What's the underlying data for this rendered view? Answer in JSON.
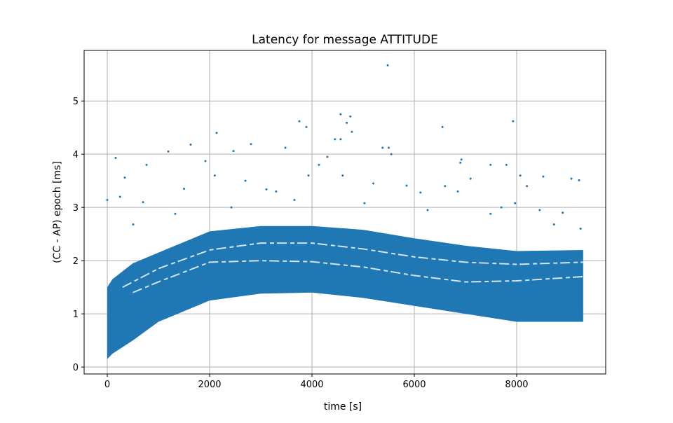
{
  "chart_data": {
    "type": "scatter",
    "title": "Latency for message ATTITUDE",
    "xlabel": "time [s]",
    "ylabel": "(CC - AP) epoch [ms]",
    "xlim": [
      -452,
      9740
    ],
    "ylim": [
      -0.13,
      5.95
    ],
    "xticks": [
      0,
      2000,
      4000,
      6000,
      8000
    ],
    "yticks": [
      0,
      1,
      2,
      3,
      4,
      5
    ],
    "grid": true,
    "color": "#1f77b4",
    "dense_band": {
      "x": [
        0,
        100,
        500,
        1000,
        2000,
        3000,
        4000,
        5000,
        6000,
        7000,
        8000,
        9300
      ],
      "lower": [
        0.15,
        0.25,
        0.5,
        0.85,
        1.25,
        1.38,
        1.4,
        1.3,
        1.15,
        1.0,
        0.85,
        0.85
      ],
      "upper": [
        1.5,
        1.65,
        1.95,
        2.15,
        2.55,
        2.65,
        2.65,
        2.58,
        2.42,
        2.28,
        2.18,
        2.2
      ]
    },
    "band_gaps": [
      {
        "x": [
          300,
          1000,
          2000,
          3000,
          4000,
          5000,
          6000,
          7000,
          8000,
          9300
        ],
        "y": [
          1.5,
          1.85,
          2.2,
          2.33,
          2.33,
          2.22,
          2.07,
          1.97,
          1.93,
          1.97
        ]
      },
      {
        "x": [
          500,
          1000,
          2000,
          3000,
          4000,
          5000,
          6000,
          7000,
          8000,
          9300
        ],
        "y": [
          1.4,
          1.6,
          1.97,
          2.0,
          1.98,
          1.88,
          1.72,
          1.6,
          1.62,
          1.7
        ]
      }
    ],
    "outliers": [
      [
        5480,
        5.67
      ],
      [
        164,
        3.93
      ],
      [
        1192,
        4.05
      ],
      [
        1630,
        4.18
      ],
      [
        2137,
        4.4
      ],
      [
        2808,
        4.19
      ],
      [
        3753,
        4.62
      ],
      [
        3890,
        4.51
      ],
      [
        4560,
        4.75
      ],
      [
        4750,
        4.71
      ],
      [
        4680,
        4.59
      ],
      [
        6550,
        4.51
      ],
      [
        7930,
        4.62
      ],
      [
        4450,
        4.28
      ],
      [
        4560,
        4.28
      ],
      [
        4780,
        4.42
      ],
      [
        5380,
        4.12
      ],
      [
        5500,
        4.12
      ],
      [
        3480,
        4.12
      ],
      [
        2466,
        4.06
      ],
      [
        6900,
        3.84
      ],
      [
        6920,
        3.9
      ],
      [
        7490,
        3.8
      ],
      [
        7800,
        3.8
      ],
      [
        8070,
        3.6
      ],
      [
        8520,
        3.58
      ],
      [
        9070,
        3.54
      ],
      [
        9220,
        3.51
      ],
      [
        0,
        3.14
      ],
      [
        342,
        3.56
      ],
      [
        767,
        3.8
      ],
      [
        1918,
        3.87
      ],
      [
        3110,
        3.34
      ],
      [
        3932,
        3.6
      ],
      [
        4137,
        3.8
      ],
      [
        5850,
        3.41
      ],
      [
        6120,
        3.28
      ],
      [
        7100,
        3.54
      ],
      [
        8450,
        2.95
      ],
      [
        7970,
        3.08
      ],
      [
        507,
        2.68
      ],
      [
        1329,
        2.88
      ],
      [
        2425,
        3.0
      ],
      [
        3657,
        3.14
      ],
      [
        5027,
        3.08
      ],
      [
        6260,
        2.95
      ],
      [
        7490,
        2.88
      ],
      [
        8730,
        2.68
      ],
      [
        250,
        3.2
      ],
      [
        700,
        3.1
      ],
      [
        1500,
        3.35
      ],
      [
        2100,
        3.6
      ],
      [
        2700,
        3.5
      ],
      [
        3300,
        3.3
      ],
      [
        4300,
        3.95
      ],
      [
        4600,
        3.6
      ],
      [
        5200,
        3.45
      ],
      [
        5550,
        4.0
      ],
      [
        6600,
        3.4
      ],
      [
        6850,
        3.3
      ],
      [
        7700,
        3.0
      ],
      [
        8200,
        3.4
      ],
      [
        8900,
        2.9
      ],
      [
        9250,
        2.6
      ]
    ]
  }
}
